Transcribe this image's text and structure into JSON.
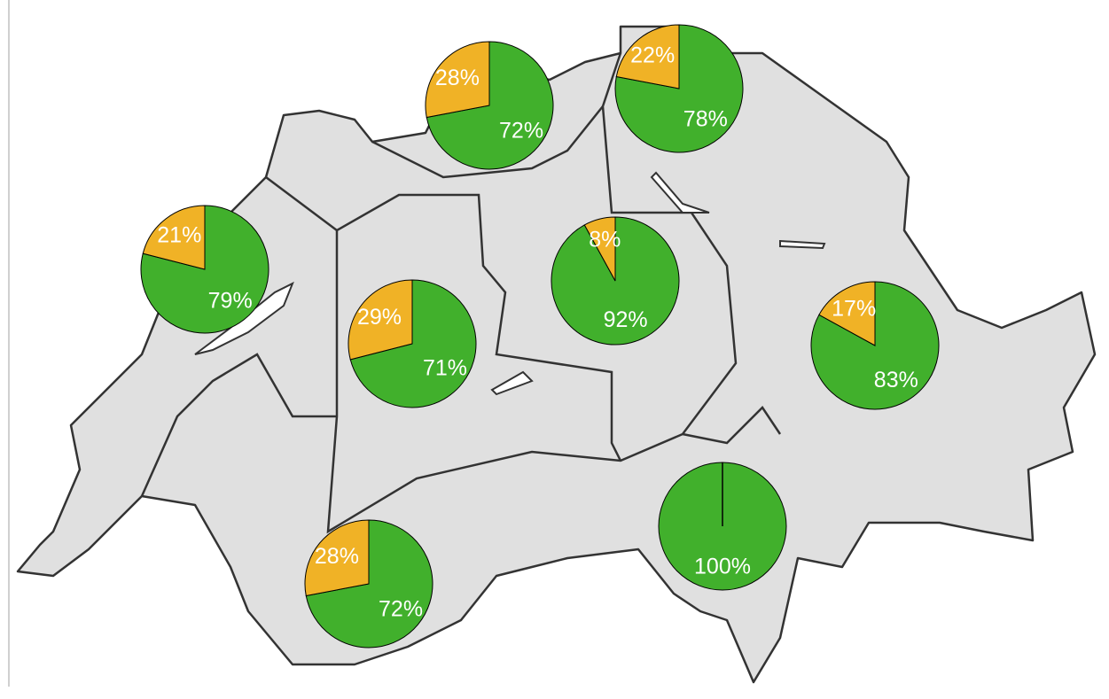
{
  "chart_data": [
    {
      "type": "pie",
      "values": [
        72,
        28
      ],
      "value_labels": [
        "72%",
        "28%"
      ],
      "colors": [
        "#41b02c",
        "#f0b226"
      ]
    },
    {
      "type": "pie",
      "values": [
        78,
        22
      ],
      "value_labels": [
        "78%",
        "22%"
      ],
      "colors": [
        "#41b02c",
        "#f0b226"
      ]
    },
    {
      "type": "pie",
      "values": [
        79,
        21
      ],
      "value_labels": [
        "79%",
        "21%"
      ],
      "colors": [
        "#41b02c",
        "#f0b226"
      ]
    },
    {
      "type": "pie",
      "values": [
        92,
        8
      ],
      "value_labels": [
        "92%",
        "8%"
      ],
      "colors": [
        "#41b02c",
        "#f0b226"
      ]
    },
    {
      "type": "pie",
      "values": [
        71,
        29
      ],
      "value_labels": [
        "71%",
        "29%"
      ],
      "colors": [
        "#41b02c",
        "#f0b226"
      ]
    },
    {
      "type": "pie",
      "values": [
        83,
        17
      ],
      "value_labels": [
        "83%",
        "17%"
      ],
      "colors": [
        "#41b02c",
        "#f0b226"
      ]
    },
    {
      "type": "pie",
      "values": [
        100
      ],
      "value_labels": [
        "100%"
      ],
      "colors": [
        "#41b02c"
      ]
    },
    {
      "type": "pie",
      "values": [
        72,
        28
      ],
      "value_labels": [
        "72%",
        "28%"
      ],
      "colors": [
        "#41b02c",
        "#f0b226"
      ]
    }
  ]
}
